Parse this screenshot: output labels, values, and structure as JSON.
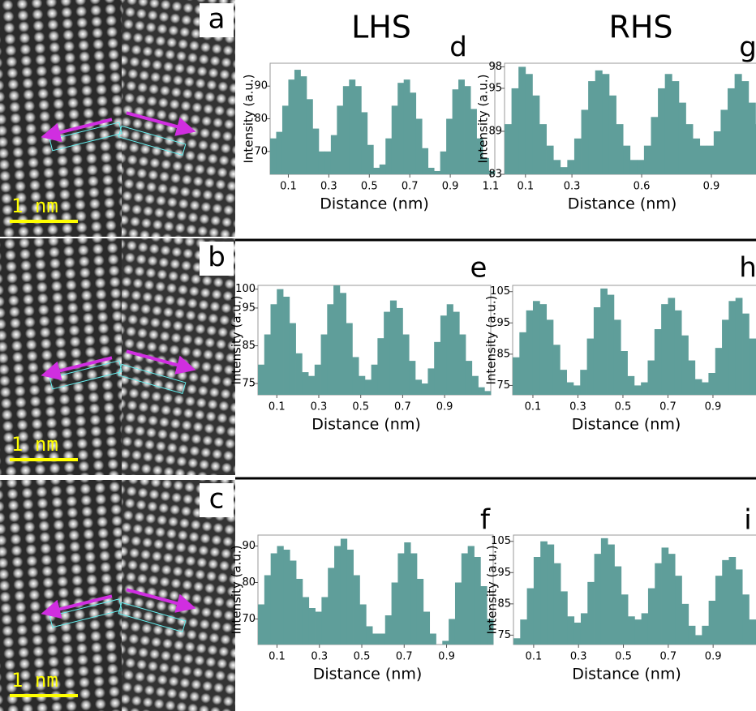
{
  "figure": {
    "column_titles": [
      "LHS",
      "RHS"
    ],
    "image_panels": [
      {
        "label": "a",
        "scale_bar": "1 nm"
      },
      {
        "label": "b",
        "scale_bar": "1 nm"
      },
      {
        "label": "c",
        "scale_bar": "1 nm"
      }
    ]
  },
  "chart_data": [
    {
      "type": "bar",
      "panel_label": "d",
      "x_label": "Distance (nm)",
      "y_label": "Intensity (a.u.)",
      "color": "#5f9e9a",
      "x": [
        0.025,
        0.055,
        0.085,
        0.115,
        0.145,
        0.175,
        0.205,
        0.235,
        0.265,
        0.295,
        0.325,
        0.355,
        0.385,
        0.415,
        0.445,
        0.475,
        0.505,
        0.535,
        0.565,
        0.595,
        0.625,
        0.655,
        0.685,
        0.715,
        0.745,
        0.775,
        0.805,
        0.835,
        0.865,
        0.895,
        0.925,
        0.955,
        0.985,
        1.015,
        1.045,
        1.075,
        1.105
      ],
      "values": [
        74,
        76,
        84,
        92,
        95,
        93,
        86,
        77,
        70,
        70,
        75,
        84,
        90,
        92,
        90,
        82,
        72,
        65,
        66,
        74,
        84,
        91,
        92,
        88,
        80,
        71,
        65,
        64,
        70,
        80,
        89,
        92,
        90,
        83,
        74,
        68,
        64
      ],
      "xlim": [
        0.01,
        1.12
      ],
      "ylim": [
        63,
        97
      ],
      "xticks": [
        0.1,
        0.3,
        0.5,
        0.7,
        0.9,
        1.1
      ],
      "yticks": [
        70,
        80,
        90
      ]
    },
    {
      "type": "bar",
      "panel_label": "g",
      "x_label": "Distance (nm)",
      "y_label": "Intensity (a.u.)",
      "color": "#5f9e9a",
      "x": [
        0.025,
        0.055,
        0.085,
        0.115,
        0.145,
        0.175,
        0.205,
        0.235,
        0.265,
        0.295,
        0.325,
        0.355,
        0.385,
        0.415,
        0.445,
        0.475,
        0.505,
        0.535,
        0.565,
        0.595,
        0.625,
        0.655,
        0.685,
        0.715,
        0.745,
        0.775,
        0.805,
        0.835,
        0.865,
        0.895,
        0.925,
        0.955,
        0.985,
        1.015,
        1.045,
        1.075,
        1.105
      ],
      "values": [
        90,
        95,
        98,
        97,
        94,
        90,
        87,
        85,
        84,
        85,
        88,
        92,
        96,
        97.5,
        97,
        94,
        90,
        87,
        85,
        85,
        87,
        91,
        95,
        97,
        96,
        93,
        90,
        88,
        87,
        87,
        89,
        92,
        95,
        97,
        96,
        93,
        90
      ],
      "xlim": [
        0.01,
        1.12
      ],
      "ylim": [
        83,
        98.5
      ],
      "xticks": [
        0.1,
        0.3,
        0.6,
        0.9
      ],
      "yticks": [
        83,
        89,
        95,
        98
      ]
    },
    {
      "type": "bar",
      "panel_label": "e",
      "x_label": "Distance (nm)",
      "y_label": "Intensity (a.u.)",
      "color": "#5f9e9a",
      "x": [
        0.025,
        0.055,
        0.085,
        0.115,
        0.145,
        0.175,
        0.205,
        0.235,
        0.265,
        0.295,
        0.325,
        0.355,
        0.385,
        0.415,
        0.445,
        0.475,
        0.505,
        0.535,
        0.565,
        0.595,
        0.625,
        0.655,
        0.685,
        0.715,
        0.745,
        0.775,
        0.805,
        0.835,
        0.865,
        0.895,
        0.925,
        0.955,
        0.985,
        1.015,
        1.045,
        1.075,
        1.105
      ],
      "values": [
        80,
        88,
        96,
        100,
        98,
        91,
        83,
        78,
        77,
        80,
        88,
        96,
        101,
        99,
        91,
        82,
        77,
        76,
        80,
        87,
        94,
        97,
        95,
        88,
        81,
        76,
        75,
        79,
        86,
        93,
        96,
        94,
        88,
        81,
        77,
        74,
        73
      ],
      "xlim": [
        0.01,
        1.12
      ],
      "ylim": [
        72,
        101
      ],
      "xticks": [
        0.1,
        0.3,
        0.5,
        0.7,
        0.9
      ],
      "yticks": [
        75,
        85,
        95,
        100
      ]
    },
    {
      "type": "bar",
      "panel_label": "h",
      "x_label": "Distance (nm)",
      "y_label": "Intensity (a.u.)",
      "color": "#5f9e9a",
      "x": [
        0.025,
        0.055,
        0.085,
        0.115,
        0.145,
        0.175,
        0.205,
        0.235,
        0.265,
        0.295,
        0.325,
        0.355,
        0.385,
        0.415,
        0.445,
        0.475,
        0.505,
        0.535,
        0.565,
        0.595,
        0.625,
        0.655,
        0.685,
        0.715,
        0.745,
        0.775,
        0.805,
        0.835,
        0.865,
        0.895,
        0.925,
        0.955,
        0.985,
        1.015,
        1.045,
        1.075,
        1.105
      ],
      "values": [
        84,
        92,
        99,
        102,
        101,
        96,
        88,
        80,
        76,
        75,
        80,
        90,
        100,
        106,
        104,
        96,
        86,
        78,
        75,
        76,
        83,
        93,
        101,
        103,
        99,
        91,
        83,
        77,
        76,
        79,
        87,
        96,
        102,
        103,
        98,
        90,
        82
      ],
      "xlim": [
        0.01,
        1.12
      ],
      "ylim": [
        72,
        107
      ],
      "xticks": [
        0.1,
        0.3,
        0.5,
        0.7,
        0.9
      ],
      "yticks": [
        75,
        85,
        95,
        105
      ]
    },
    {
      "type": "bar",
      "panel_label": "f",
      "x_label": "Distance (nm)",
      "y_label": "Intensity (a.u.)",
      "color": "#5f9e9a",
      "x": [
        0.025,
        0.055,
        0.085,
        0.115,
        0.145,
        0.175,
        0.205,
        0.235,
        0.265,
        0.295,
        0.325,
        0.355,
        0.385,
        0.415,
        0.445,
        0.475,
        0.505,
        0.535,
        0.565,
        0.595,
        0.625,
        0.655,
        0.685,
        0.715,
        0.745,
        0.775,
        0.805,
        0.835,
        0.865,
        0.895,
        0.925,
        0.955,
        0.985,
        1.015,
        1.045,
        1.075,
        1.105
      ],
      "values": [
        74,
        82,
        88,
        90,
        89,
        86,
        81,
        76,
        73,
        72,
        76,
        84,
        90,
        92,
        89,
        82,
        74,
        68,
        66,
        66,
        71,
        80,
        88,
        91,
        88,
        81,
        72,
        66,
        63,
        64,
        70,
        80,
        88,
        90,
        87,
        79,
        70
      ],
      "xlim": [
        0.01,
        1.12
      ],
      "ylim": [
        63,
        93
      ],
      "xticks": [
        0.1,
        0.3,
        0.5,
        0.7,
        0.9
      ],
      "yticks": [
        70,
        80,
        90
      ]
    },
    {
      "type": "bar",
      "panel_label": "i",
      "x_label": "Distance (nm)",
      "y_label": "Intensity (a.u.)",
      "color": "#5f9e9a",
      "x": [
        0.025,
        0.055,
        0.085,
        0.115,
        0.145,
        0.175,
        0.205,
        0.235,
        0.265,
        0.295,
        0.325,
        0.355,
        0.385,
        0.415,
        0.445,
        0.475,
        0.505,
        0.535,
        0.565,
        0.595,
        0.625,
        0.655,
        0.685,
        0.715,
        0.745,
        0.775,
        0.805,
        0.835,
        0.865,
        0.895,
        0.925,
        0.955,
        0.985,
        1.015,
        1.045,
        1.075,
        1.105
      ],
      "values": [
        74,
        80,
        90,
        100,
        105,
        104,
        98,
        89,
        81,
        79,
        82,
        92,
        101,
        106,
        104,
        97,
        88,
        81,
        80,
        82,
        90,
        98,
        103,
        101,
        94,
        85,
        78,
        75,
        78,
        86,
        94,
        99,
        100,
        96,
        88,
        80,
        76
      ],
      "xlim": [
        0.01,
        1.12
      ],
      "ylim": [
        72,
        107
      ],
      "xticks": [
        0.1,
        0.3,
        0.5,
        0.7,
        0.9
      ],
      "yticks": [
        75,
        85,
        95,
        105
      ]
    }
  ]
}
